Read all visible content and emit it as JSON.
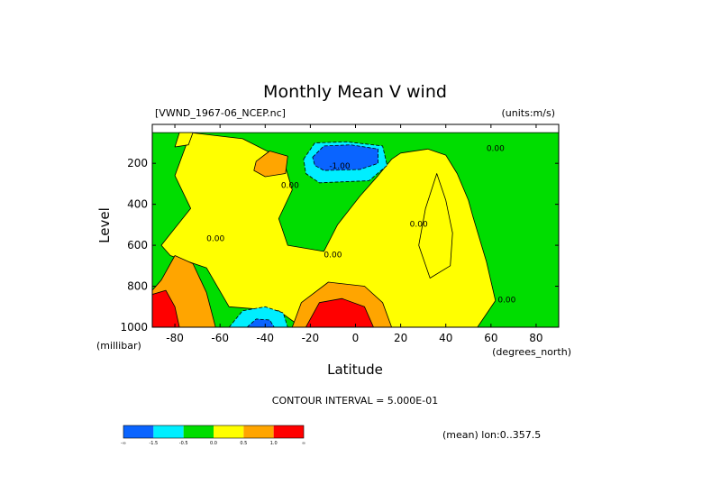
{
  "chart_data": {
    "type": "contour",
    "title": "Monthly Mean V wind",
    "dataset_label": "[VWND_1967-06_NCEP.nc]",
    "units_label": "(units:m/s)",
    "xlabel": "Latitude",
    "x_units_label": "(degrees_north)",
    "ylabel": "Level",
    "y_units_label": "(millibar)",
    "xlim": [
      -90,
      90
    ],
    "ylim": [
      1000,
      10
    ],
    "y_inverted": true,
    "x_ticks": [
      "-80",
      "-60",
      "-40",
      "-20",
      "0",
      "20",
      "40",
      "60",
      "80"
    ],
    "x_tick_values": [
      -80,
      -60,
      -40,
      -20,
      0,
      20,
      40,
      60,
      80
    ],
    "y_ticks": [
      "200",
      "400",
      "600",
      "800",
      "1000"
    ],
    "y_tick_values": [
      200,
      400,
      600,
      800,
      1000
    ],
    "contour_interval_text": "CONTOUR INTERVAL = 5.000E-01",
    "mean_text": "(mean) lon:0..357.5",
    "contour_labels": [
      {
        "text": "0.00",
        "lat": -62,
        "lev": 580
      },
      {
        "text": "0.00",
        "lat": -29,
        "lev": 320
      },
      {
        "text": "0.00",
        "lat": -10,
        "lev": 660
      },
      {
        "text": "-1.00",
        "lat": -7,
        "lev": 225
      },
      {
        "text": "0.00",
        "lat": 28,
        "lev": 510
      },
      {
        "text": "0.00",
        "lat": 62,
        "lev": 140
      },
      {
        "text": "0.00",
        "lat": 67,
        "lev": 880
      }
    ],
    "colorbar": {
      "colors": [
        "#0a64ff",
        "#00eeff",
        "#00dd00",
        "#ffff00",
        "#ffa500",
        "#ff0000"
      ],
      "labels": [
        "-∞",
        "-1.5",
        "-0.5",
        "0.0",
        "0.5",
        "1.0",
        "∞"
      ]
    },
    "regions": [
      {
        "level_class": 0,
        "color": "#00dd00",
        "points": [
          [
            -90,
            50
          ],
          [
            90,
            50
          ],
          [
            90,
            1000
          ],
          [
            -90,
            1000
          ]
        ]
      },
      {
        "level_class": 1,
        "color": "#ffff00",
        "points": [
          [
            -73,
            50
          ],
          [
            -50,
            80
          ],
          [
            -32,
            180
          ],
          [
            -28,
            330
          ],
          [
            -34,
            470
          ],
          [
            -30,
            600
          ],
          [
            -14,
            630
          ],
          [
            -8,
            500
          ],
          [
            2,
            360
          ],
          [
            10,
            260
          ],
          [
            16,
            180
          ],
          [
            20,
            150
          ],
          [
            32,
            130
          ],
          [
            40,
            160
          ],
          [
            45,
            250
          ],
          [
            50,
            380
          ],
          [
            52,
            460
          ],
          [
            58,
            680
          ],
          [
            62,
            870
          ],
          [
            54,
            1000
          ],
          [
            -24,
            1000
          ],
          [
            -34,
            920
          ],
          [
            -56,
            900
          ],
          [
            -66,
            710
          ],
          [
            -82,
            650
          ],
          [
            -86,
            600
          ],
          [
            -73,
            420
          ],
          [
            -80,
            260
          ]
        ]
      },
      {
        "level_class": 1,
        "color": "#ffff00",
        "points": [
          [
            36,
            250
          ],
          [
            40,
            380
          ],
          [
            43,
            540
          ],
          [
            42,
            700
          ],
          [
            33,
            760
          ],
          [
            28,
            600
          ],
          [
            31,
            420
          ]
        ]
      },
      {
        "level_class": 1,
        "color": "#ffff00",
        "points": [
          [
            -78,
            50
          ],
          [
            -72,
            50
          ],
          [
            -74,
            110
          ],
          [
            -80,
            120
          ]
        ]
      },
      {
        "level_class": 2,
        "color": "#ffa500",
        "points": [
          [
            -44,
            190
          ],
          [
            -38,
            140
          ],
          [
            -30,
            165
          ],
          [
            -31,
            250
          ],
          [
            -40,
            265
          ],
          [
            -45,
            235
          ]
        ]
      },
      {
        "level_class": 2,
        "color": "#ffa500",
        "points": [
          [
            -86,
            770
          ],
          [
            -80,
            650
          ],
          [
            -72,
            690
          ],
          [
            -66,
            830
          ],
          [
            -62,
            1000
          ],
          [
            -90,
            1000
          ],
          [
            -90,
            820
          ]
        ]
      },
      {
        "level_class": 2,
        "color": "#ffa500",
        "points": [
          [
            -28,
            1000
          ],
          [
            -24,
            880
          ],
          [
            -12,
            780
          ],
          [
            4,
            800
          ],
          [
            12,
            880
          ],
          [
            16,
            1000
          ]
        ]
      },
      {
        "level_class": 3,
        "color": "#ff0000",
        "points": [
          [
            -90,
            840
          ],
          [
            -84,
            820
          ],
          [
            -80,
            900
          ],
          [
            -78,
            1000
          ],
          [
            -90,
            1000
          ]
        ]
      },
      {
        "level_class": 3,
        "color": "#ff0000",
        "points": [
          [
            -22,
            1000
          ],
          [
            -16,
            880
          ],
          [
            -6,
            860
          ],
          [
            4,
            900
          ],
          [
            8,
            1000
          ]
        ]
      },
      {
        "level_class": -1,
        "color": "#00eeff",
        "points": [
          [
            -23,
            180
          ],
          [
            -18,
            100
          ],
          [
            -4,
            95
          ],
          [
            12,
            115
          ],
          [
            14,
            210
          ],
          [
            6,
            285
          ],
          [
            -16,
            295
          ],
          [
            -22,
            250
          ]
        ]
      },
      {
        "level_class": -2,
        "color": "#0a64ff",
        "points": [
          [
            -19,
            170
          ],
          [
            -14,
            115
          ],
          [
            -2,
            110
          ],
          [
            10,
            130
          ],
          [
            10,
            200
          ],
          [
            2,
            230
          ],
          [
            -14,
            235
          ],
          [
            -18,
            210
          ]
        ]
      },
      {
        "level_class": -1,
        "color": "#00eeff",
        "points": [
          [
            -56,
            1000
          ],
          [
            -50,
            920
          ],
          [
            -40,
            900
          ],
          [
            -32,
            930
          ],
          [
            -30,
            1000
          ]
        ]
      },
      {
        "level_class": -2,
        "color": "#0a64ff",
        "points": [
          [
            -48,
            1000
          ],
          [
            -44,
            960
          ],
          [
            -38,
            965
          ],
          [
            -36,
            1000
          ]
        ]
      }
    ]
  }
}
